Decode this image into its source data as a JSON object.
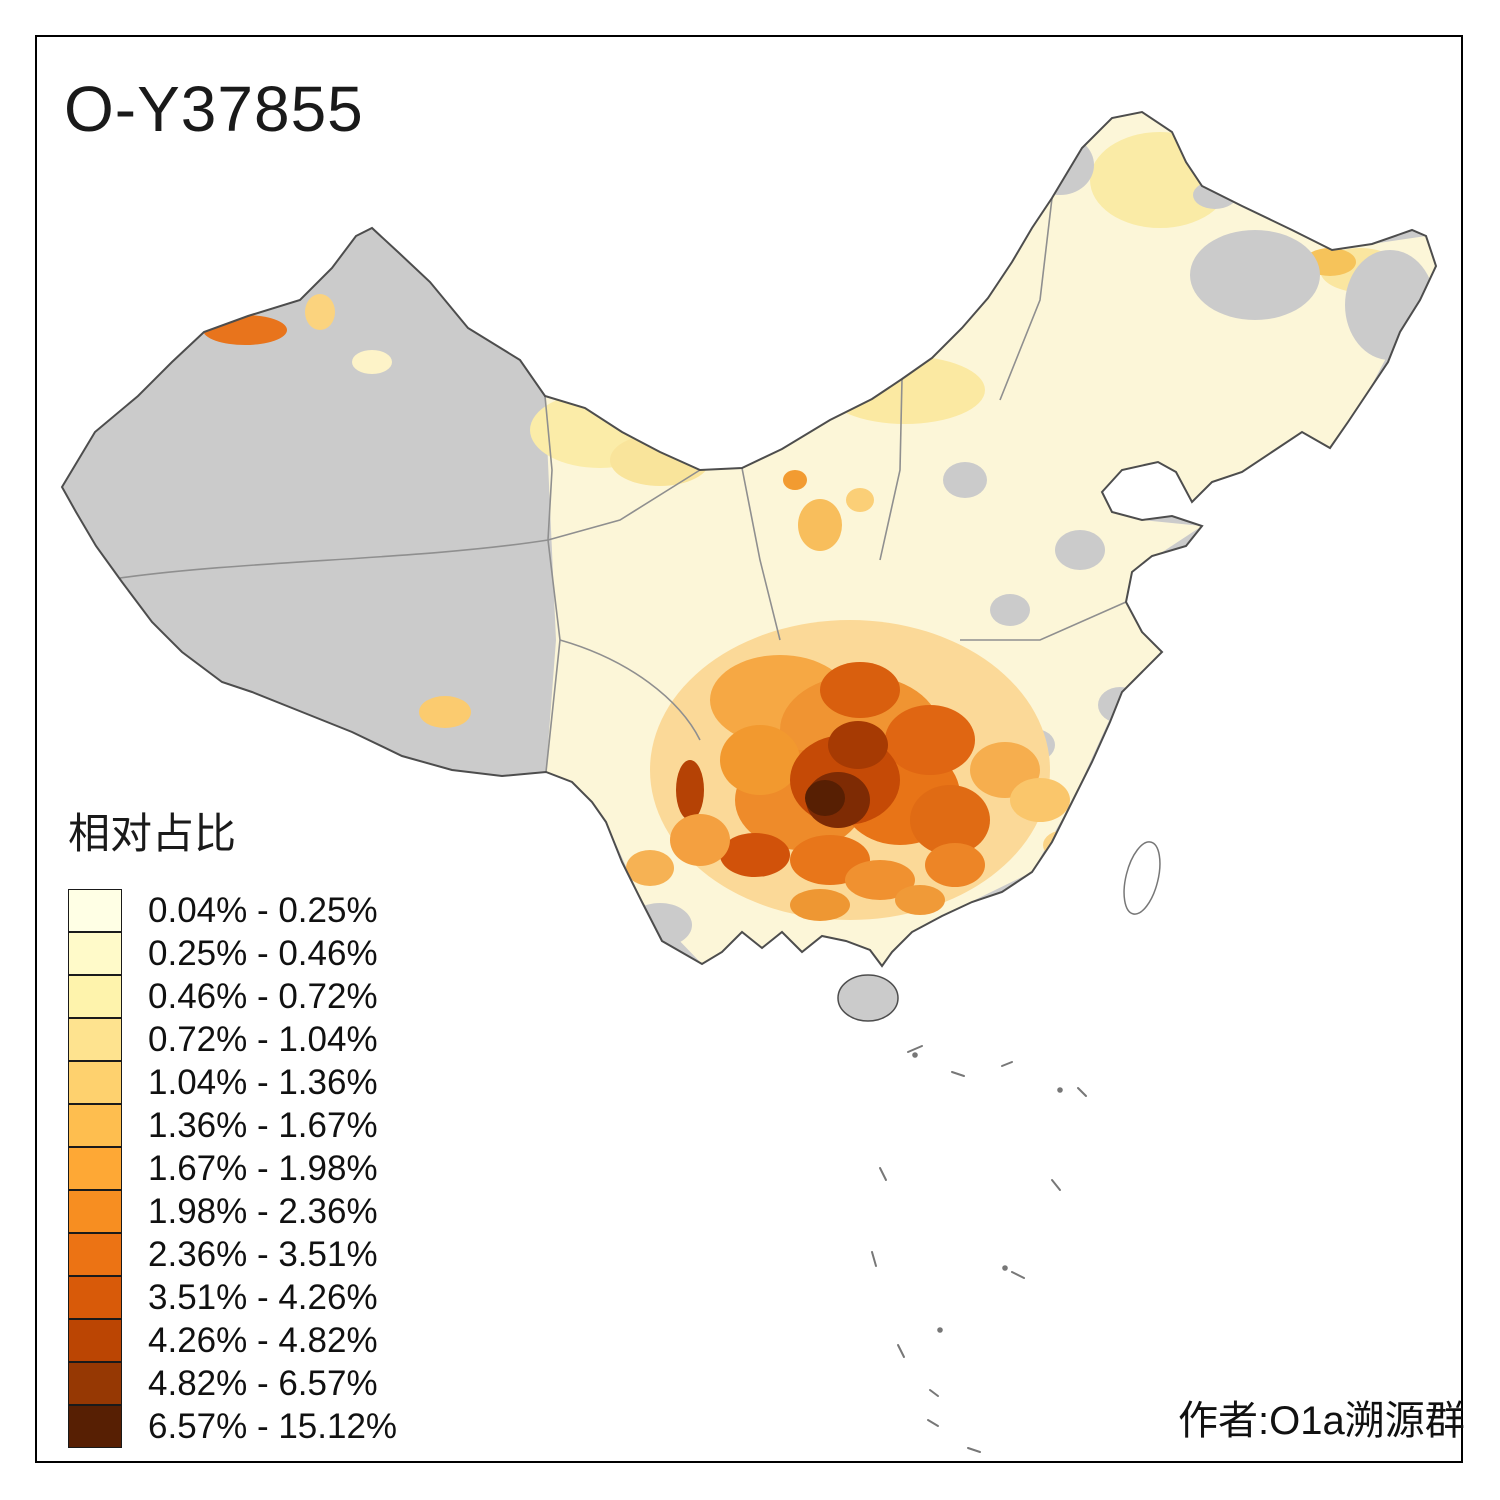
{
  "title": "O-Y37855",
  "legend": {
    "title": "相对占比",
    "items": [
      {
        "label": "0.04% - 0.25%",
        "color": "#FFFFE5"
      },
      {
        "label": "0.25% - 0.46%",
        "color": "#FFFAC9"
      },
      {
        "label": "0.46% - 0.72%",
        "color": "#FEF3AC"
      },
      {
        "label": "0.72% - 1.04%",
        "color": "#FEE38F"
      },
      {
        "label": "1.04% - 1.36%",
        "color": "#FED16E"
      },
      {
        "label": "1.36% - 1.67%",
        "color": "#FEBE4F"
      },
      {
        "label": "1.67% - 1.98%",
        "color": "#FEA835"
      },
      {
        "label": "1.98% - 2.36%",
        "color": "#F78E21"
      },
      {
        "label": "2.36% - 3.51%",
        "color": "#EC7314"
      },
      {
        "label": "3.51% - 4.26%",
        "color": "#D85A09"
      },
      {
        "label": "4.26% - 4.82%",
        "color": "#BB4503"
      },
      {
        "label": "4.82% - 6.57%",
        "color": "#963803"
      },
      {
        "label": "6.57% - 15.12%",
        "color": "#571F03"
      }
    ]
  },
  "attribution": "作者:O1a溯源群",
  "map": {
    "no_data_color": "#CCCCCC",
    "outline_color": "#4D4D4D",
    "region_label": "China choropleth of relative haplogroup share by prefecture"
  }
}
